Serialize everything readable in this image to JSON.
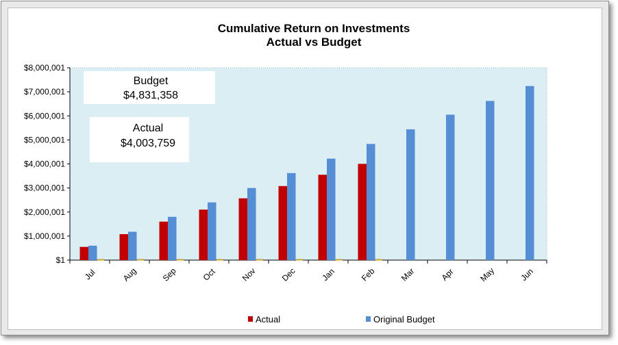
{
  "chart_data": {
    "type": "bar",
    "title": "Cumulative Return on  Investments",
    "subtitle": "Actual vs Budget",
    "categories": [
      "Jul",
      "Aug",
      "Sep",
      "Oct",
      "Nov",
      "Dec",
      "Jan",
      "Feb",
      "Mar",
      "Apr",
      "May",
      "Jun"
    ],
    "series": [
      {
        "name": "Actual",
        "color": "#c00000",
        "values": [
          550000,
          1080000,
          1600000,
          2100000,
          2570000,
          3080000,
          3550000,
          4003759,
          null,
          null,
          null,
          null
        ]
      },
      {
        "name": "Original Budget",
        "color": "#558ed5",
        "values": [
          600000,
          1180000,
          1800000,
          2400000,
          3000000,
          3620000,
          4220000,
          4831358,
          5440000,
          6050000,
          6620000,
          7240000
        ]
      }
    ],
    "y_ticks": [
      "$1",
      "$1,000,001",
      "$2,000,001",
      "$3,000,001",
      "$4,000,001",
      "$5,000,001",
      "$6,000,001",
      "$7,000,001",
      "$8,000,001"
    ],
    "ylim": [
      1,
      8000001
    ],
    "xlabel": "",
    "ylabel": "",
    "legend_position": "bottom",
    "plot_background": "#dbeef4",
    "annotations": [
      {
        "label": "Budget",
        "value": "$4,831,358"
      },
      {
        "label": "Actual",
        "value": "$4,003,759"
      }
    ]
  }
}
